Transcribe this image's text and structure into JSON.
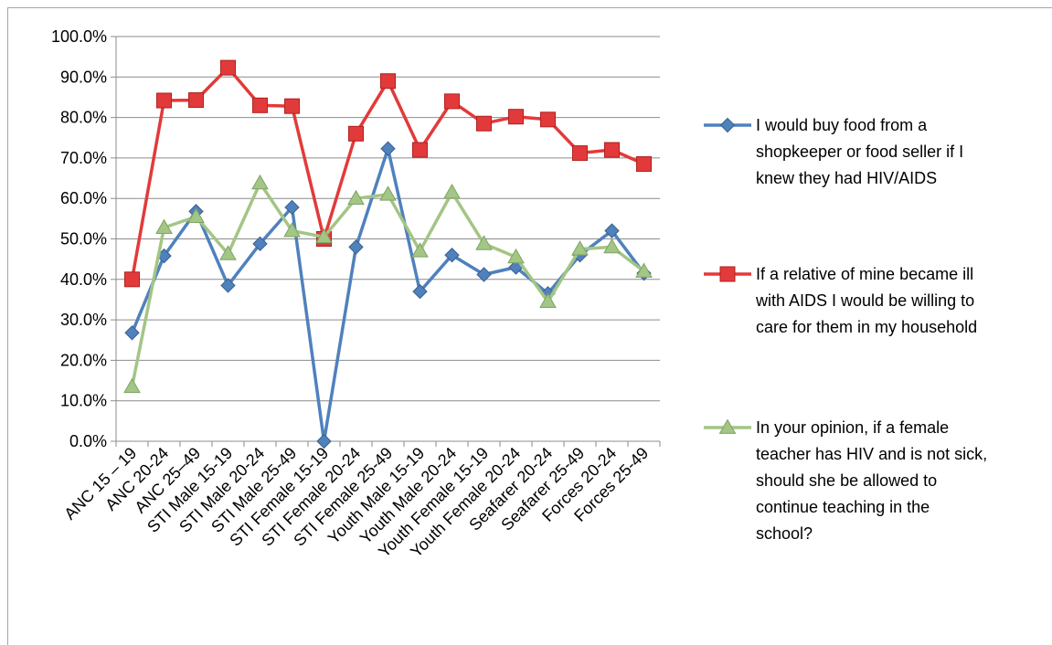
{
  "chart_data": {
    "type": "line",
    "title": "",
    "xlabel": "",
    "ylabel": "",
    "ylim": [
      0,
      100
    ],
    "y_step": 10,
    "y_tick_format": "percent_1dp",
    "grid": true,
    "legend_position": "right",
    "categories": [
      "ANC 15 – 19",
      "ANC 20-24",
      "ANC 25–49",
      "STI Male 15-19",
      "STI Male 20-24",
      "STI Male 25-49",
      "STI Female 15-19",
      "STI Female 20-24",
      "STI Female 25-49",
      "Youth Male 15-19",
      "Youth Male 20-24",
      "Youth Female 15-19",
      "Youth Female 20-24",
      "Seafarer 20-24",
      "Seafarer 25-49",
      "Forces 20-24",
      "Forces 25-49"
    ],
    "series": [
      {
        "name": "I would buy food from a shopkeeper or food seller  if I knew they had HIV/AIDS",
        "legend_lines": [
          "I would buy food from a",
          "shopkeeper or food seller  if I",
          "knew they had HIV/AIDS"
        ],
        "color": "#4F81BD",
        "marker": "diamond",
        "values": [
          26.8,
          45.8,
          56.8,
          38.5,
          48.8,
          57.8,
          0.0,
          48.0,
          72.3,
          37.0,
          46.0,
          41.2,
          43.0,
          36.5,
          46.0,
          52.0,
          41.5
        ]
      },
      {
        "name": "If a relative of mine became ill with AIDS I would be willing to care for them in my household",
        "legend_lines": [
          "If a relative of mine became ill",
          "with AIDS I would be willing to",
          "care for them in my household"
        ],
        "color": "#E23A3A",
        "marker": "square",
        "values": [
          40.0,
          84.2,
          84.3,
          92.3,
          83.0,
          82.8,
          50.0,
          76.0,
          89.0,
          72.0,
          84.0,
          78.5,
          80.2,
          79.5,
          71.2,
          72.0,
          68.5
        ]
      },
      {
        "name": "In your opinion, if a female teacher has HIV and is not sick, should she be allowed to continue teaching in the school?",
        "legend_lines": [
          "In your opinion, if a female",
          "teacher has HIV and is not sick,",
          "should she be allowed to",
          "continue teaching in the",
          "school?"
        ],
        "color": "#A3C585",
        "marker": "triangle",
        "values": [
          13.5,
          52.8,
          55.5,
          46.3,
          63.8,
          52.0,
          50.5,
          60.0,
          61.0,
          47.0,
          61.5,
          48.8,
          45.5,
          34.5,
          47.5,
          48.0,
          42.0
        ]
      }
    ]
  }
}
